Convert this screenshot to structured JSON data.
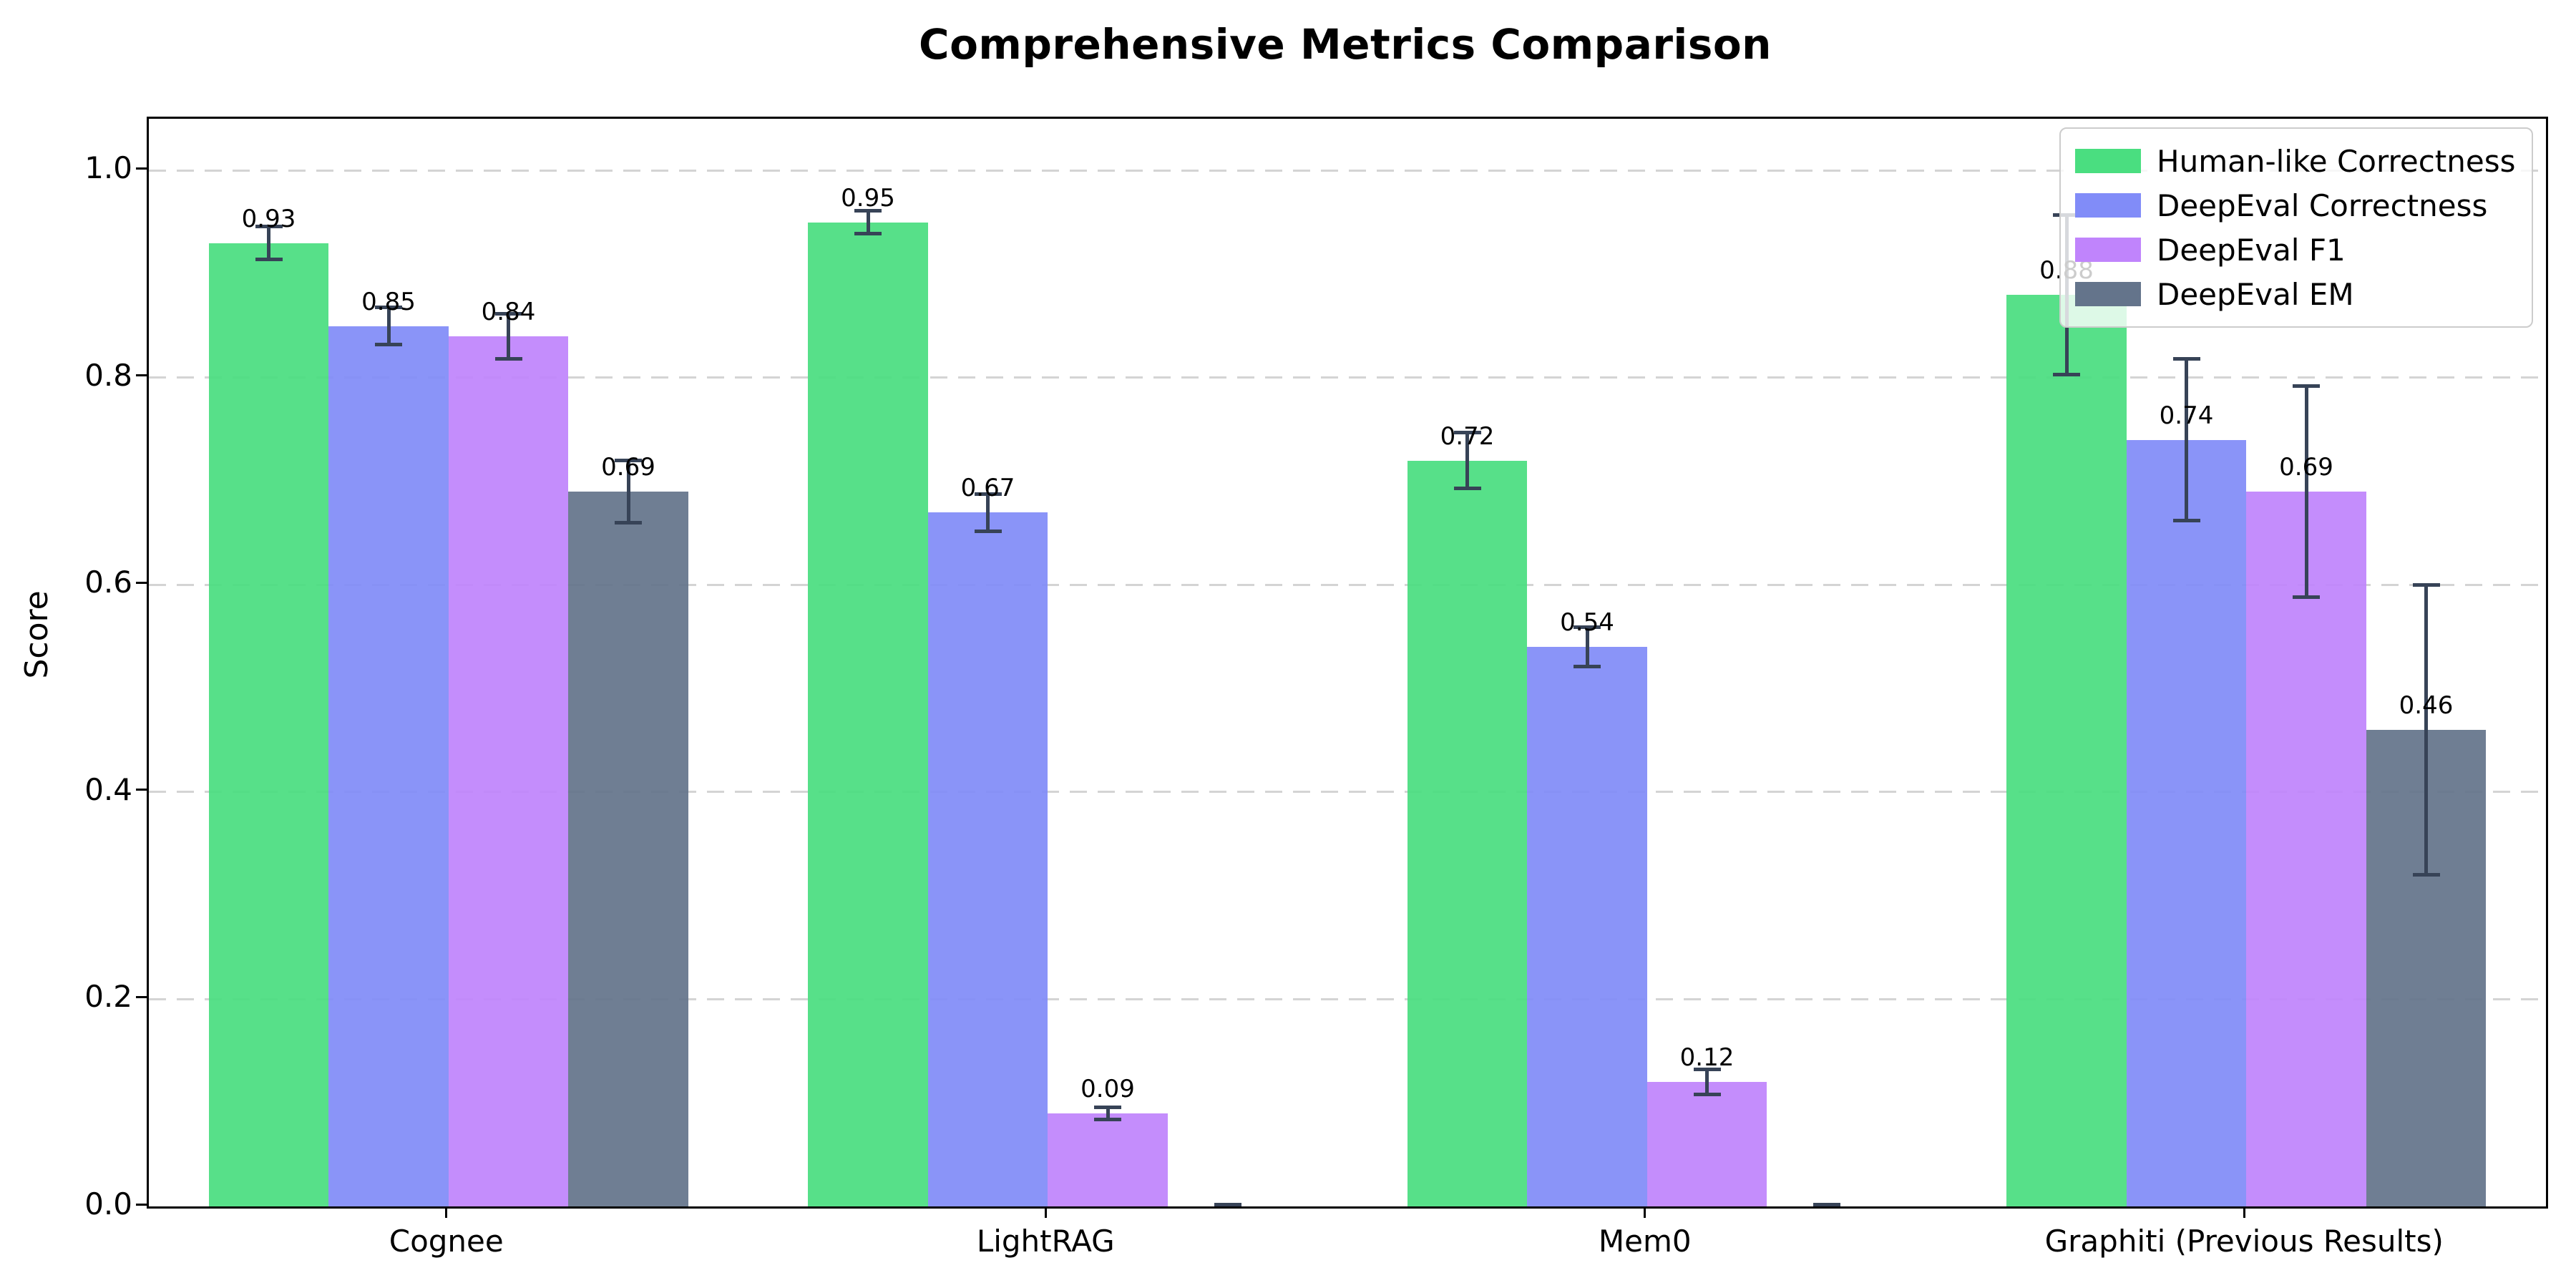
{
  "title": "Comprehensive Metrics Comparison",
  "ylabel": "Score",
  "chart_data": {
    "type": "bar",
    "categories": [
      "Cognee",
      "LightRAG",
      "Mem0",
      "Graphiti (Previous Results)"
    ],
    "series": [
      {
        "name": "Human-like Correctness",
        "color": "#4ade80",
        "values": [
          0.93,
          0.95,
          0.72,
          0.88
        ],
        "errors": [
          0.016,
          0.011,
          0.027,
          0.077
        ],
        "labels": [
          "0.93",
          "0.95",
          "0.72",
          "0.88"
        ]
      },
      {
        "name": "DeepEval Correctness",
        "color": "#818cf8",
        "values": [
          0.85,
          0.67,
          0.54,
          0.74
        ],
        "errors": [
          0.018,
          0.018,
          0.019,
          0.078
        ],
        "labels": [
          "0.85",
          "0.67",
          "0.54",
          "0.74"
        ]
      },
      {
        "name": "DeepEval F1",
        "color": "#c084fc",
        "values": [
          0.84,
          0.09,
          0.12,
          0.69
        ],
        "errors": [
          0.022,
          0.006,
          0.012,
          0.102
        ],
        "labels": [
          "0.84",
          "0.09",
          "0.12",
          "0.69"
        ]
      },
      {
        "name": "DeepEval EM",
        "color": "#64748b",
        "values": [
          0.69,
          0.0,
          0.0,
          0.46
        ],
        "errors": [
          0.03,
          0.002,
          0.002,
          0.14
        ],
        "labels": [
          "0.69",
          "",
          "",
          "0.46"
        ]
      }
    ],
    "title": "Comprehensive Metrics Comparison",
    "xlabel": "",
    "ylabel": "Score",
    "ylim": [
      0,
      1.05
    ],
    "yticks": [
      {
        "label": "0.0",
        "value": 0.0
      },
      {
        "label": "0.2",
        "value": 0.2
      },
      {
        "label": "0.4",
        "value": 0.4
      },
      {
        "label": "0.6",
        "value": 0.6
      },
      {
        "label": "0.8",
        "value": 0.8
      },
      {
        "label": "1.0",
        "value": 1.0
      }
    ],
    "grid": "horizontal-dashed",
    "legend_position": "upper-right",
    "bar_group_width": 0.8,
    "error_bar_color": "#374357",
    "gridline_color": "#d4d4d4"
  }
}
